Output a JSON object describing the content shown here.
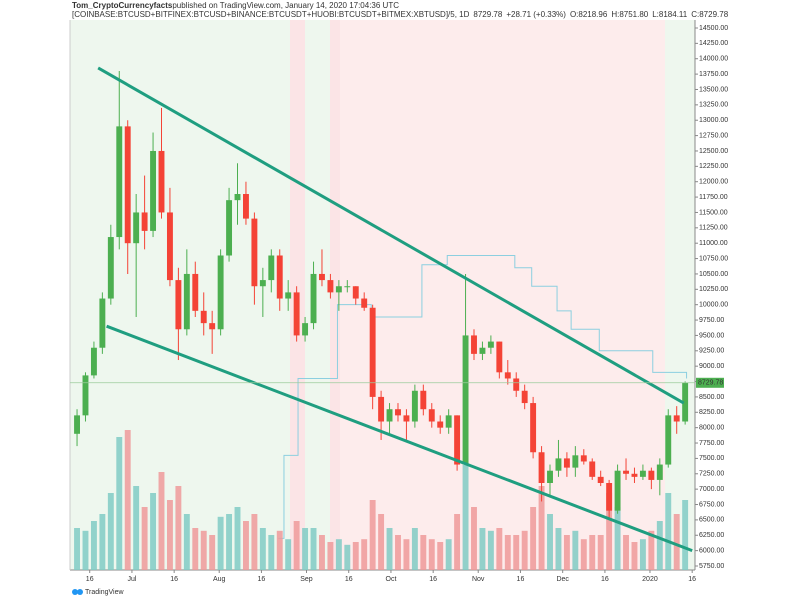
{
  "chart_data": {
    "type": "candlestick",
    "author": "Tom_CryptoCurrencyfacts",
    "published": " published on TradingView.com, January 14, 2020 17:04:36 UTC",
    "symbol": "[COINBASE:BTCUSD+BITFINEX:BTCUSD+BINANCE:BTCUSDT+HUOBI:BTCUSDT+BITMEX:XBTUSD]/5, 1D",
    "last": "8729.78",
    "change": "+28.71 (+0.33%)",
    "ohlc": [
      "O:8218.96",
      "H:8751.80",
      "L:8184.11",
      "C:8729.78"
    ],
    "brand": "TradingView",
    "period_days": 3,
    "up_color": "#4caf50",
    "down_color": "#f44336",
    "volume_up_color": "#80cbc4",
    "volume_down_color": "#ef9a9a",
    "x": [
      "2019-06-10",
      "2019-06-13",
      "2019-06-16",
      "2019-06-19",
      "2019-06-22",
      "2019-06-25",
      "2019-06-28",
      "2019-07-01",
      "2019-07-04",
      "2019-07-07",
      "2019-07-10",
      "2019-07-13",
      "2019-07-16",
      "2019-07-19",
      "2019-07-22",
      "2019-07-25",
      "2019-07-28",
      "2019-07-31",
      "2019-08-03",
      "2019-08-06",
      "2019-08-09",
      "2019-08-12",
      "2019-08-15",
      "2019-08-18",
      "2019-08-21",
      "2019-08-24",
      "2019-08-27",
      "2019-08-30",
      "2019-09-02",
      "2019-09-05",
      "2019-09-08",
      "2019-09-11",
      "2019-09-14",
      "2019-09-17",
      "2019-09-20",
      "2019-09-23",
      "2019-09-26",
      "2019-09-29",
      "2019-10-02",
      "2019-10-05",
      "2019-10-08",
      "2019-10-11",
      "2019-10-14",
      "2019-10-17",
      "2019-10-20",
      "2019-10-23",
      "2019-10-26",
      "2019-10-29",
      "2019-11-01",
      "2019-11-04",
      "2019-11-07",
      "2019-11-10",
      "2019-11-13",
      "2019-11-16",
      "2019-11-19",
      "2019-11-22",
      "2019-11-25",
      "2019-11-28",
      "2019-12-01",
      "2019-12-04",
      "2019-12-07",
      "2019-12-10",
      "2019-12-13",
      "2019-12-16",
      "2019-12-19",
      "2019-12-22",
      "2019-12-25",
      "2019-12-28",
      "2019-12-31",
      "2020-01-03",
      "2020-01-06",
      "2020-01-09",
      "2020-01-12"
    ],
    "open": [
      7900,
      8200,
      8850,
      9300,
      10100,
      11100,
      12900,
      11000,
      11500,
      11200,
      12500,
      11500,
      10400,
      9600,
      10500,
      9900,
      9700,
      9600,
      10800,
      11700,
      11800,
      11400,
      10300,
      10400,
      10800,
      10100,
      10200,
      9500,
      9700,
      10500,
      10400,
      10200,
      10300,
      10300,
      10100,
      9950,
      8500,
      8100,
      8300,
      8200,
      8100,
      8600,
      8300,
      8100,
      8000,
      8200,
      7400,
      9500,
      9200,
      9300,
      9400,
      8900,
      8800,
      8600,
      8400,
      7600,
      7100,
      7300,
      7500,
      7350,
      7550,
      7450,
      7200,
      7100,
      6650,
      7300,
      7250,
      7200,
      7300,
      7150,
      7400,
      8200,
      8100
    ],
    "high": [
      8300,
      8900,
      9400,
      10200,
      11300,
      13800,
      13000,
      11800,
      12100,
      12800,
      13200,
      11900,
      10600,
      10900,
      10700,
      10200,
      9900,
      10900,
      11900,
      12300,
      12000,
      11500,
      10600,
      10900,
      10900,
      10400,
      10300,
      9800,
      10700,
      10900,
      10500,
      10400,
      10400,
      10300,
      10200,
      10000,
      8600,
      8400,
      8400,
      8300,
      8700,
      8700,
      8400,
      8200,
      8300,
      8200,
      10500,
      9600,
      9400,
      9500,
      9400,
      9100,
      8900,
      8700,
      8500,
      7700,
      7400,
      7800,
      7600,
      7700,
      7650,
      7500,
      7300,
      7150,
      7400,
      7500,
      7350,
      7400,
      7350,
      7500,
      8300,
      8350,
      8751.8
    ],
    "low": [
      7700,
      8100,
      8800,
      9200,
      10000,
      10900,
      10500,
      9800,
      10900,
      11100,
      11400,
      10300,
      9100,
      9500,
      9800,
      9500,
      9200,
      9500,
      10700,
      11300,
      11300,
      10000,
      9800,
      10200,
      9900,
      9900,
      9400,
      9400,
      9600,
      10300,
      10100,
      9900,
      10200,
      10000,
      9900,
      8300,
      7800,
      7900,
      8100,
      7800,
      8000,
      8200,
      8000,
      7900,
      7900,
      7300,
      7400,
      9100,
      9100,
      9200,
      8800,
      8700,
      8500,
      8300,
      7500,
      6800,
      6900,
      7200,
      7200,
      7200,
      7400,
      7150,
      7050,
      6500,
      6600,
      7150,
      7100,
      7150,
      7000,
      6900,
      7350,
      7900,
      8050
    ],
    "close": [
      8200,
      8850,
      9300,
      10100,
      11100,
      12900,
      11000,
      11500,
      11200,
      12500,
      11500,
      10400,
      9600,
      10500,
      9900,
      9700,
      9600,
      10800,
      11700,
      11800,
      11400,
      10300,
      10400,
      10800,
      10100,
      10200,
      9500,
      9700,
      10500,
      10400,
      10200,
      10300,
      10300,
      10100,
      9950,
      8500,
      8100,
      8300,
      8200,
      8100,
      8600,
      8300,
      8100,
      8000,
      8200,
      7400,
      9500,
      9200,
      9300,
      9400,
      8900,
      8800,
      8600,
      8400,
      7600,
      7100,
      7300,
      7500,
      7350,
      7550,
      7450,
      7200,
      7100,
      6650,
      7300,
      7250,
      7200,
      7300,
      7150,
      7400,
      8200,
      8100,
      8729.78
    ],
    "volume": [
      30,
      28,
      35,
      40,
      55,
      95,
      100,
      60,
      45,
      55,
      70,
      50,
      60,
      40,
      30,
      28,
      25,
      38,
      40,
      45,
      35,
      40,
      30,
      25,
      28,
      22,
      35,
      30,
      30,
      25,
      20,
      22,
      18,
      20,
      22,
      50,
      40,
      30,
      25,
      22,
      30,
      25,
      22,
      20,
      22,
      40,
      75,
      45,
      30,
      28,
      30,
      25,
      25,
      28,
      45,
      60,
      40,
      30,
      25,
      28,
      22,
      25,
      25,
      55,
      45,
      25,
      20,
      22,
      28,
      35,
      55,
      40,
      50
    ],
    "vlim": [
      0,
      100
    ],
    "xlim": [
      "2019-06-09",
      "2020-01-17"
    ],
    "xticks": [
      {
        "value": "2019-06-16",
        "label": "16"
      },
      {
        "value": "2019-07-01",
        "label": "Jul"
      },
      {
        "value": "2019-07-16",
        "label": "16"
      },
      {
        "value": "2019-08-01",
        "label": "Aug"
      },
      {
        "value": "2019-08-16",
        "label": "16"
      },
      {
        "value": "2019-09-01",
        "label": "Sep"
      },
      {
        "value": "2019-09-16",
        "label": "16"
      },
      {
        "value": "2019-10-01",
        "label": "Oct"
      },
      {
        "value": "2019-10-16",
        "label": "16"
      },
      {
        "value": "2019-11-01",
        "label": "Nov"
      },
      {
        "value": "2019-11-16",
        "label": "16"
      },
      {
        "value": "2019-12-01",
        "label": "Dec"
      },
      {
        "value": "2019-12-16",
        "label": "16"
      },
      {
        "value": "2020-01-01",
        "label": "2020"
      },
      {
        "value": "2020-01-16",
        "label": "16"
      }
    ],
    "ylim": [
      5685,
      14630
    ],
    "yticks": [
      {
        "value": 5750,
        "label": "5750.00"
      },
      {
        "value": 6000,
        "label": "6000.00"
      },
      {
        "value": 6250,
        "label": "6250.00"
      },
      {
        "value": 6500,
        "label": "6500.00"
      },
      {
        "value": 6750,
        "label": "6750.00"
      },
      {
        "value": 7000,
        "label": "7000.00"
      },
      {
        "value": 7250,
        "label": "7250.00"
      },
      {
        "value": 7500,
        "label": "7500.00"
      },
      {
        "value": 7750,
        "label": "7750.00"
      },
      {
        "value": 8000,
        "label": "8000.00"
      },
      {
        "value": 8250,
        "label": "8250.00"
      },
      {
        "value": 8500,
        "label": "8500.00"
      },
      {
        "value": 8750,
        "label": "8750.00"
      },
      {
        "value": 9000,
        "label": "9000.00"
      },
      {
        "value": 9250,
        "label": "9250.00"
      },
      {
        "value": 9500,
        "label": "9500.00"
      },
      {
        "value": 9750,
        "label": "9750.00"
      },
      {
        "value": 10000,
        "label": "10000.00"
      },
      {
        "value": 10250,
        "label": "10250.00"
      },
      {
        "value": 10500,
        "label": "10500.00"
      },
      {
        "value": 10750,
        "label": "10750.00"
      },
      {
        "value": 11000,
        "label": "11000.00"
      },
      {
        "value": 11250,
        "label": "11250.00"
      },
      {
        "value": 11500,
        "label": "11500.00"
      },
      {
        "value": 11750,
        "label": "11750.00"
      },
      {
        "value": 12000,
        "label": "12000.00"
      },
      {
        "value": 12250,
        "label": "12250.00"
      },
      {
        "value": 12500,
        "label": "12500.00"
      },
      {
        "value": 12750,
        "label": "12750.00"
      },
      {
        "value": 13000,
        "label": "13000.00"
      },
      {
        "value": 13250,
        "label": "13250.00"
      },
      {
        "value": 13500,
        "label": "13500.00"
      },
      {
        "value": 13750,
        "label": "13750.00"
      },
      {
        "value": 14000,
        "label": "14000.00"
      },
      {
        "value": 14250,
        "label": "14250.00"
      },
      {
        "value": 14500,
        "label": "14500.00"
      }
    ],
    "trendlines": [
      {
        "color": "#1f9e80",
        "x": [
          "2019-06-19",
          "2020-01-13"
        ],
        "values": [
          13850,
          8400
        ]
      },
      {
        "color": "#1f9e80",
        "x": [
          "2019-06-22",
          "2020-01-16"
        ],
        "values": [
          9650,
          6000
        ]
      }
    ],
    "step_line": {
      "color": "#8ccfe0",
      "x": [
        "2019-08-22",
        "2019-08-24",
        "2019-08-29",
        "2019-09-12",
        "2019-09-24",
        "2019-10-12",
        "2019-10-21",
        "2019-11-14",
        "2019-11-20",
        "2019-11-29",
        "2019-12-04",
        "2019-12-14",
        "2020-01-02",
        "2020-01-14"
      ],
      "values": [
        6200,
        7550,
        8800,
        10000,
        9800,
        10650,
        10800,
        10600,
        10300,
        9900,
        9600,
        9250,
        8900,
        8800
      ]
    }
  }
}
